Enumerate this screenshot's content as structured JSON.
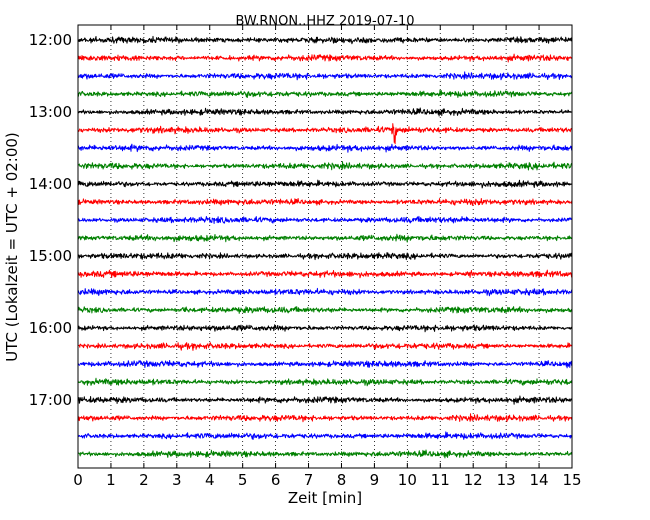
{
  "chart_data": {
    "type": "line",
    "title": "BW.RNON..HHZ 2019-07-10",
    "xlabel": "Zeit  [min]",
    "ylabel": "UTC (Lokalzeit = UTC + 02:00)",
    "xlim": [
      0,
      15
    ],
    "x_ticks": [
      "0",
      "1",
      "2",
      "3",
      "4",
      "5",
      "6",
      "7",
      "8",
      "9",
      "10",
      "11",
      "12",
      "13",
      "14",
      "15"
    ],
    "y_ticks": [
      "12:00",
      "13:00",
      "14:00",
      "15:00",
      "16:00",
      "17:00"
    ],
    "trace_interval_min": 15,
    "grid": "vertical dotted",
    "color_cycle": [
      "#000000",
      "#ff0000",
      "#0000ff",
      "#008000"
    ],
    "traces": [
      {
        "start": "12:00",
        "color": "#000000"
      },
      {
        "start": "12:15",
        "color": "#ff0000"
      },
      {
        "start": "12:30",
        "color": "#0000ff"
      },
      {
        "start": "12:45",
        "color": "#008000"
      },
      {
        "start": "13:00",
        "color": "#000000"
      },
      {
        "start": "13:15",
        "color": "#ff0000"
      },
      {
        "start": "13:30",
        "color": "#0000ff"
      },
      {
        "start": "13:45",
        "color": "#008000"
      },
      {
        "start": "14:00",
        "color": "#000000"
      },
      {
        "start": "14:15",
        "color": "#ff0000"
      },
      {
        "start": "14:30",
        "color": "#0000ff"
      },
      {
        "start": "14:45",
        "color": "#008000"
      },
      {
        "start": "15:00",
        "color": "#000000"
      },
      {
        "start": "15:15",
        "color": "#ff0000"
      },
      {
        "start": "15:30",
        "color": "#0000ff"
      },
      {
        "start": "15:45",
        "color": "#008000"
      },
      {
        "start": "16:00",
        "color": "#000000"
      },
      {
        "start": "16:15",
        "color": "#ff0000"
      },
      {
        "start": "16:30",
        "color": "#0000ff"
      },
      {
        "start": "16:45",
        "color": "#008000"
      },
      {
        "start": "17:00",
        "color": "#000000"
      },
      {
        "start": "17:15",
        "color": "#ff0000"
      },
      {
        "start": "17:30",
        "color": "#0000ff"
      },
      {
        "start": "17:45",
        "color": "#008000"
      }
    ],
    "events": [
      {
        "trace_start": "13:15",
        "minute": 9.6,
        "relative_amplitude": 5.0
      },
      {
        "trace_start": "15:15",
        "minute": 11.9,
        "relative_amplitude": 1.8
      },
      {
        "trace_start": "15:45",
        "minute": 3.25,
        "relative_amplitude": 2.3
      }
    ]
  }
}
